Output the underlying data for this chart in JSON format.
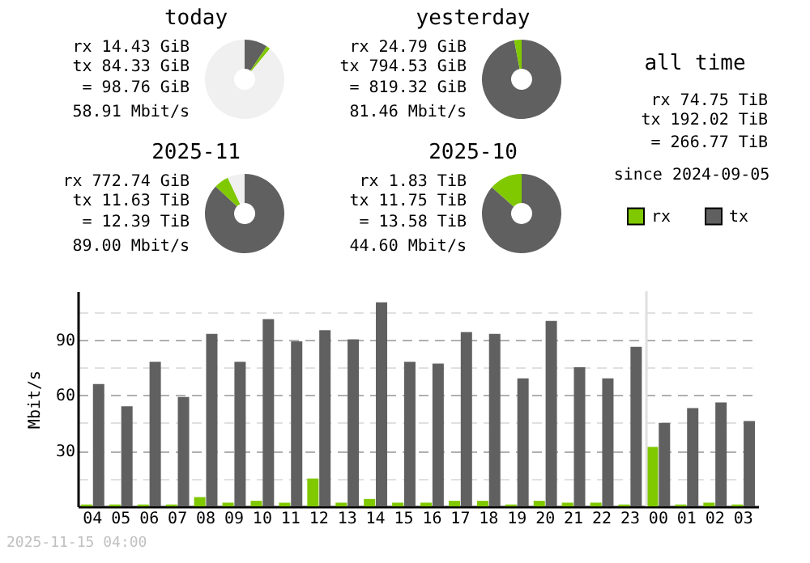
{
  "chart_data": [
    {
      "type": "donut",
      "title": "today",
      "categories": [
        null,
        null,
        null
      ],
      "values": [
        9.4,
        1.6,
        89
      ],
      "colors": [
        "#606060",
        "#80c800",
        "#f0f0f0"
      ],
      "annotations": [
        "rx 14.43 GiB",
        "tx 84.33 GiB",
        "= 98.76 GiB",
        "58.91 Mbit/s"
      ]
    },
    {
      "type": "donut",
      "title": "yesterday",
      "categories": [
        null,
        null
      ],
      "values": [
        97,
        3
      ],
      "colors": [
        "#606060",
        "#80c800"
      ],
      "annotations": [
        "rx 24.79 GiB",
        "tx 794.53 GiB",
        "= 819.32 GiB",
        "81.46 Mbit/s"
      ]
    },
    {
      "type": "other",
      "title": "all time",
      "annotations": [
        "rx 74.75 TiB",
        "tx 192.02 TiB",
        "= 266.77 TiB",
        "since 2024-09-05"
      ]
    },
    {
      "type": "donut",
      "title": "2025-11",
      "categories": [
        null,
        null,
        null
      ],
      "values": [
        87,
        6,
        7
      ],
      "colors": [
        "#606060",
        "#80c800",
        "#f0f0f0"
      ],
      "annotations": [
        "rx 772.74 GiB",
        "tx 11.63 TiB",
        "= 12.39 TiB",
        "89.00 Mbit/s"
      ]
    },
    {
      "type": "donut",
      "title": "2025-10",
      "categories": [
        null,
        null
      ],
      "values": [
        86.5,
        13.5
      ],
      "colors": [
        "#606060",
        "#80c800"
      ],
      "annotations": [
        "rx 1.83 TiB",
        "tx 11.75 TiB",
        "= 13.58 TiB",
        "44.60 Mbit/s"
      ]
    },
    {
      "type": "bar",
      "ylabel": "Mbit/s",
      "categories": [
        "04",
        "05",
        "06",
        "07",
        "08",
        "09",
        "10",
        "11",
        "12",
        "13",
        "14",
        "15",
        "16",
        "17",
        "18",
        "19",
        "20",
        "21",
        "22",
        "23",
        "00",
        "01",
        "02",
        "03"
      ],
      "series": [
        {
          "name": "rx",
          "color": "#80c800",
          "values": [
            1,
            1,
            1,
            1,
            5,
            2,
            3,
            2,
            15,
            2,
            4,
            2,
            2,
            3,
            3,
            1,
            3,
            2,
            2,
            1,
            32,
            1,
            2,
            1
          ]
        },
        {
          "name": "tx",
          "color": "#606060",
          "values": [
            66,
            54,
            78,
            59,
            93,
            78,
            101,
            89,
            95,
            90,
            110,
            78,
            77,
            94,
            93,
            69,
            100,
            75,
            69,
            86,
            45,
            53,
            56,
            46
          ]
        }
      ],
      "ylim": [
        0,
        116
      ],
      "yticks": [
        {
          "value": 15,
          "label": null
        },
        30,
        {
          "value": 45,
          "label": null
        },
        60,
        {
          "value": 75,
          "label": null
        },
        90,
        {
          "value": 105,
          "label": null
        }
      ],
      "grid": "y",
      "legend": "top right",
      "ref_lines": [
        {
          "axis": "x",
          "value": "00",
          "color": "#e0e0e0"
        }
      ],
      "annotations": [
        "2025-11-15 04:00"
      ]
    }
  ]
}
